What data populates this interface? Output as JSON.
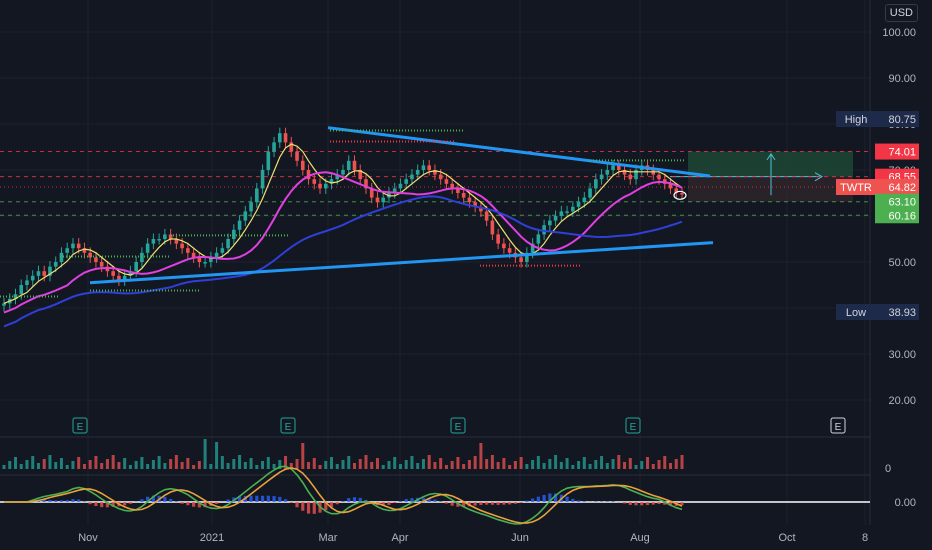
{
  "currency": "USD",
  "colors": {
    "background": "#131722",
    "grid": "#1e222d",
    "up": "#26a69a",
    "down": "#ef5350",
    "ma_fast": "#f0e070",
    "ma_mid": "#e040e0",
    "ma_slow": "#2f3fd8",
    "trendline": "#2196f3",
    "red_level": "#f23645",
    "green_level": "#4caf50",
    "profit_zone": "#1f4d37",
    "target_arrow": "#4fc3d7",
    "macd_line": "#4caf50",
    "signal_line": "#e6a23c"
  },
  "chart_data": {
    "type": "candlestick",
    "symbol": "TWTR",
    "last_price": 64.82,
    "y_axis": {
      "ticks": [
        "100.00",
        "90.00",
        "80.00",
        "70.00",
        "60.00",
        "50.00",
        "40.00",
        "30.00",
        "20.00"
      ],
      "range": [
        12,
        103
      ]
    },
    "x_axis": {
      "ticks": [
        "Nov",
        "2021",
        "Mar",
        "Apr",
        "Jun",
        "Aug",
        "Oct",
        "8"
      ]
    },
    "levels": {
      "high": {
        "label": "High",
        "value": "80.75"
      },
      "low": {
        "label": "Low",
        "value": "38.93"
      },
      "r1": {
        "value": "74.01",
        "kind": "red"
      },
      "r2": {
        "value": "68.55",
        "kind": "red"
      },
      "s1": {
        "value": "63.10",
        "kind": "green"
      },
      "s2": {
        "value": "60.16",
        "kind": "green"
      }
    },
    "earnings_markers": [
      "E",
      "E",
      "E",
      "E",
      "E"
    ],
    "oscillator": {
      "zero_label": "0.00"
    },
    "volume": {
      "zero_label": "0"
    },
    "series": {
      "close_approx": [
        41,
        42,
        43,
        45,
        46,
        47,
        48,
        47,
        49,
        50,
        52,
        53,
        54,
        53,
        52,
        51,
        50,
        49,
        48,
        47,
        46,
        47,
        48,
        50,
        52,
        54,
        55,
        55,
        56,
        55,
        54,
        53,
        52,
        51,
        50,
        50,
        51,
        52,
        53,
        55,
        57,
        59,
        61,
        63,
        66,
        70,
        74,
        76,
        78,
        76,
        74,
        72,
        70,
        68,
        67,
        66,
        67,
        68,
        69,
        70,
        72,
        70,
        68,
        66,
        64,
        63,
        64,
        65,
        66,
        67,
        68,
        69,
        70,
        71,
        70,
        69,
        68,
        67,
        66,
        65,
        64,
        63,
        62,
        61,
        59,
        56,
        54,
        53,
        52,
        51,
        50,
        52,
        54,
        56,
        58,
        59,
        60,
        61,
        61,
        62,
        63,
        64,
        66,
        68,
        69,
        70,
        71,
        70,
        69,
        68,
        70,
        71,
        70,
        69,
        68,
        67,
        66,
        65,
        64.82
      ]
    }
  }
}
